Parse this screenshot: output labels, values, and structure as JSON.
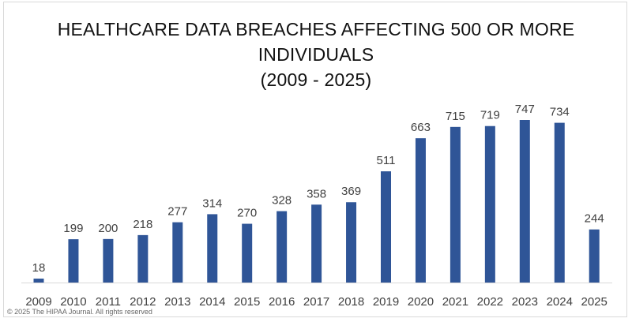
{
  "chart_data": {
    "type": "bar",
    "title_lines": [
      "HEALTHCARE DATA BREACHES AFFECTING 500 OR MORE",
      "INDIVIDUALS",
      "(2009 - 2025)"
    ],
    "categories": [
      "2009",
      "2010",
      "2011",
      "2012",
      "2013",
      "2014",
      "2015",
      "2016",
      "2017",
      "2018",
      "2019",
      "2020",
      "2021",
      "2022",
      "2023",
      "2024",
      "2025"
    ],
    "values": [
      18,
      199,
      200,
      218,
      277,
      314,
      270,
      328,
      358,
      369,
      511,
      663,
      715,
      719,
      747,
      734,
      244
    ],
    "xlabel": "",
    "ylabel": "",
    "ylim": [
      0,
      747
    ],
    "grid": false,
    "data_labels": true,
    "bar_color": "#2f5597"
  },
  "footer": {
    "copyright": "© 2025 The HIPAA Journal. All rights reserved"
  }
}
